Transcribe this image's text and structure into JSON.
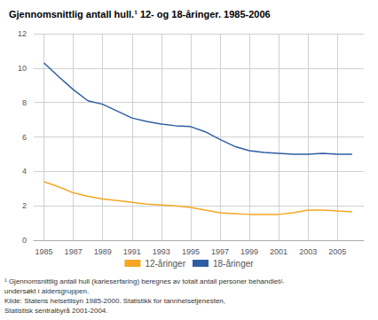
{
  "chart_data": {
    "type": "line",
    "title": "Gjennomsnittlig antall hull.¹ 12- og 18-åringer. 1985-2006",
    "x": [
      1985,
      1986,
      1987,
      1988,
      1989,
      1990,
      1991,
      1992,
      1993,
      1994,
      1995,
      1996,
      1997,
      1998,
      1999,
      2000,
      2001,
      2002,
      2003,
      2004,
      2005,
      2006
    ],
    "series": [
      {
        "name": "12-åringer",
        "color": "#f5a623",
        "values": [
          3.4,
          3.1,
          2.75,
          2.55,
          2.4,
          2.3,
          2.2,
          2.1,
          2.05,
          2.0,
          1.9,
          1.75,
          1.6,
          1.55,
          1.5,
          1.5,
          1.5,
          1.6,
          1.75,
          1.75,
          1.7,
          1.65
        ]
      },
      {
        "name": "18-åringer",
        "color": "#2e5fa3",
        "values": [
          10.3,
          9.5,
          8.75,
          8.1,
          7.9,
          7.5,
          7.1,
          6.9,
          6.75,
          6.65,
          6.6,
          6.3,
          5.85,
          5.45,
          5.2,
          5.1,
          5.05,
          5.0,
          5.0,
          5.05,
          5.0,
          5.0
        ]
      }
    ],
    "xlim": [
      1984.3,
      2006.8
    ],
    "xticks": [
      1985,
      1987,
      1989,
      1991,
      1993,
      1995,
      1997,
      1999,
      2001,
      2003,
      2005
    ],
    "ylim": [
      0,
      12
    ],
    "yticks": [
      0,
      2,
      4,
      6,
      8,
      10,
      12
    ],
    "grid": true,
    "legend": "bottom",
    "footnote": "¹ Gjennomsnittlig antall hull (karieserfaring) beregnes av totalt antall personer behandlet/-\nundersøkt i aldersgruppen.\nKilde: Statens helsetilsyn 1985-2000. Statistikk for tannhelsetjenesten,\nStatistisk sentralbyrå 2001-2004."
  }
}
